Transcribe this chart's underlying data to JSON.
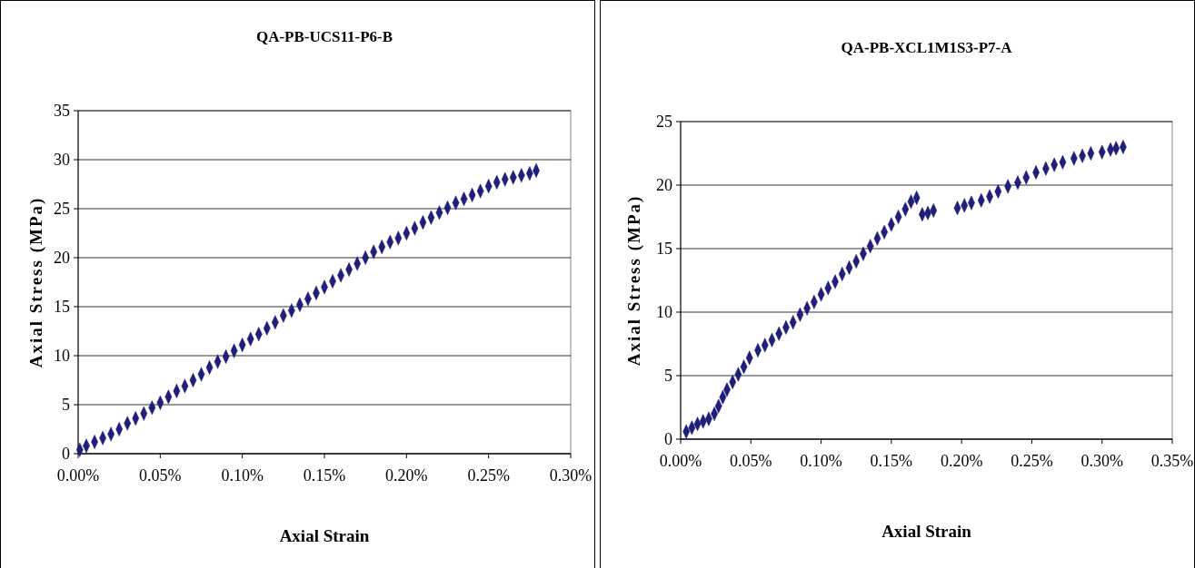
{
  "chart_data": [
    {
      "type": "scatter",
      "title": "QA-PB-UCS11-P6-B",
      "xlabel": "Axial Strain",
      "ylabel": "Axial Stress (MPa)",
      "marker": "diamond",
      "grid": "y",
      "xlim": [
        0,
        0.3
      ],
      "xticks": [
        {
          "value": 0,
          "label": "0.00%"
        },
        {
          "value": 0.05,
          "label": "0.05%"
        },
        {
          "value": 0.1,
          "label": "0.10%"
        },
        {
          "value": 0.15,
          "label": "0.15%"
        },
        {
          "value": 0.2,
          "label": "0.20%"
        },
        {
          "value": 0.25,
          "label": "0.25%"
        },
        {
          "value": 0.3,
          "label": "0.30%"
        }
      ],
      "ylim": [
        0,
        35
      ],
      "yticks": [
        0,
        5,
        10,
        15,
        20,
        25,
        30,
        35
      ],
      "series": [
        {
          "color": "#1f1f7a",
          "x": [
            0.001,
            0.005,
            0.01,
            0.015,
            0.02,
            0.025,
            0.03,
            0.035,
            0.04,
            0.045,
            0.05,
            0.055,
            0.06,
            0.065,
            0.07,
            0.075,
            0.08,
            0.085,
            0.09,
            0.095,
            0.1,
            0.105,
            0.11,
            0.115,
            0.12,
            0.125,
            0.13,
            0.135,
            0.14,
            0.145,
            0.15,
            0.155,
            0.16,
            0.165,
            0.17,
            0.175,
            0.18,
            0.185,
            0.19,
            0.195,
            0.2,
            0.205,
            0.21,
            0.215,
            0.22,
            0.225,
            0.23,
            0.235,
            0.24,
            0.245,
            0.25,
            0.255,
            0.26,
            0.265,
            0.27,
            0.275,
            0.279
          ],
          "values": [
            0.4,
            0.8,
            1.2,
            1.6,
            2.0,
            2.5,
            3.1,
            3.6,
            4.1,
            4.7,
            5.2,
            5.8,
            6.4,
            6.9,
            7.5,
            8.1,
            8.8,
            9.4,
            9.9,
            10.5,
            11.1,
            11.7,
            12.2,
            12.8,
            13.4,
            14.1,
            14.6,
            15.2,
            15.8,
            16.4,
            17.0,
            17.6,
            18.2,
            18.8,
            19.4,
            20.0,
            20.6,
            21.1,
            21.6,
            22.0,
            22.5,
            23.0,
            23.6,
            24.1,
            24.6,
            25.1,
            25.6,
            26.0,
            26.4,
            26.8,
            27.3,
            27.7,
            28.0,
            28.2,
            28.4,
            28.6,
            28.9
          ]
        }
      ]
    },
    {
      "type": "scatter",
      "title": "QA-PB-XCL1M1S3-P7-A",
      "xlabel": "Axial Strain",
      "ylabel": "Axial Stress (MPa)",
      "marker": "diamond",
      "grid": "y",
      "xlim": [
        0,
        0.35
      ],
      "xticks": [
        {
          "value": 0,
          "label": "0.00%"
        },
        {
          "value": 0.05,
          "label": "0.05%"
        },
        {
          "value": 0.1,
          "label": "0.10%"
        },
        {
          "value": 0.15,
          "label": "0.15%"
        },
        {
          "value": 0.2,
          "label": "0.20%"
        },
        {
          "value": 0.25,
          "label": "0.25%"
        },
        {
          "value": 0.3,
          "label": "0.30%"
        },
        {
          "value": 0.35,
          "label": "0.35%"
        }
      ],
      "ylim": [
        0,
        25
      ],
      "yticks": [
        0,
        5,
        10,
        15,
        20,
        25
      ],
      "series": [
        {
          "color": "#1f1f7a",
          "x": [
            0.004,
            0.008,
            0.012,
            0.016,
            0.02,
            0.024,
            0.027,
            0.03,
            0.033,
            0.037,
            0.041,
            0.045,
            0.049,
            0.055,
            0.06,
            0.065,
            0.07,
            0.075,
            0.08,
            0.085,
            0.09,
            0.095,
            0.1,
            0.105,
            0.11,
            0.115,
            0.12,
            0.125,
            0.13,
            0.135,
            0.14,
            0.145,
            0.15,
            0.155,
            0.16,
            0.164,
            0.168,
            0.172,
            0.176,
            0.18,
            0.197,
            0.202,
            0.207,
            0.214,
            0.22,
            0.226,
            0.233,
            0.24,
            0.246,
            0.253,
            0.26,
            0.266,
            0.272,
            0.28,
            0.286,
            0.292,
            0.3,
            0.306,
            0.31,
            0.315
          ],
          "values": [
            0.6,
            0.9,
            1.2,
            1.4,
            1.6,
            2.0,
            2.6,
            3.3,
            3.9,
            4.5,
            5.1,
            5.7,
            6.4,
            7.0,
            7.4,
            7.8,
            8.3,
            8.8,
            9.2,
            9.8,
            10.3,
            10.8,
            11.4,
            11.9,
            12.4,
            13.0,
            13.5,
            14.0,
            14.6,
            15.2,
            15.8,
            16.3,
            16.9,
            17.5,
            18.1,
            18.7,
            19.0,
            17.7,
            17.8,
            18.0,
            18.2,
            18.4,
            18.6,
            18.8,
            19.1,
            19.5,
            19.9,
            20.2,
            20.6,
            21.0,
            21.3,
            21.6,
            21.8,
            22.1,
            22.3,
            22.5,
            22.6,
            22.8,
            22.9,
            23.0
          ]
        }
      ]
    }
  ]
}
